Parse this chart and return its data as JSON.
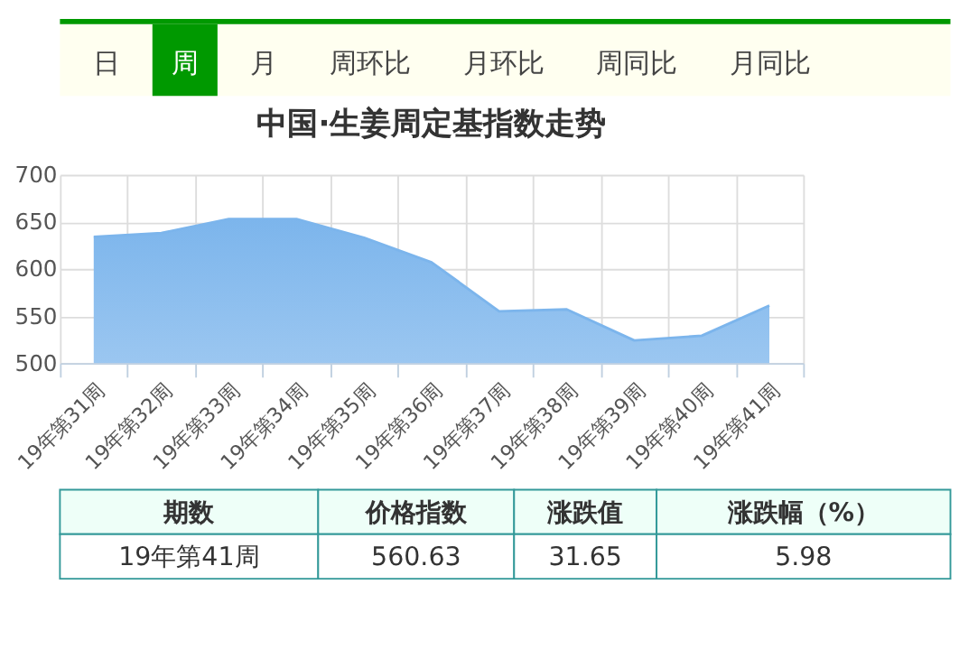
{
  "chart_data": {
    "type": "area",
    "title": "中国·生姜周定基指数走势",
    "categories": [
      "19年第31周",
      "19年第32周",
      "19年第33周",
      "19年第34周",
      "19年第35周",
      "19年第36周",
      "19年第37周",
      "19年第38周",
      "19年第39周",
      "19年第40周",
      "19年第41周"
    ],
    "values": [
      634,
      638,
      653,
      653,
      633,
      607,
      555,
      557,
      524,
      529,
      561
    ],
    "color": "#7cb5ec",
    "ylim": [
      500,
      700
    ],
    "yticks": [
      500,
      550,
      600,
      650,
      700
    ],
    "grid": true,
    "annotations": [
      "日",
      "周",
      "月",
      "周环比",
      "月环比",
      "周同比",
      "月同比",
      "期数",
      "价格指数",
      "涨跌值",
      "涨跌幅（%）",
      "19年第41周",
      "560.63",
      "31.65",
      "5.98"
    ]
  }
}
